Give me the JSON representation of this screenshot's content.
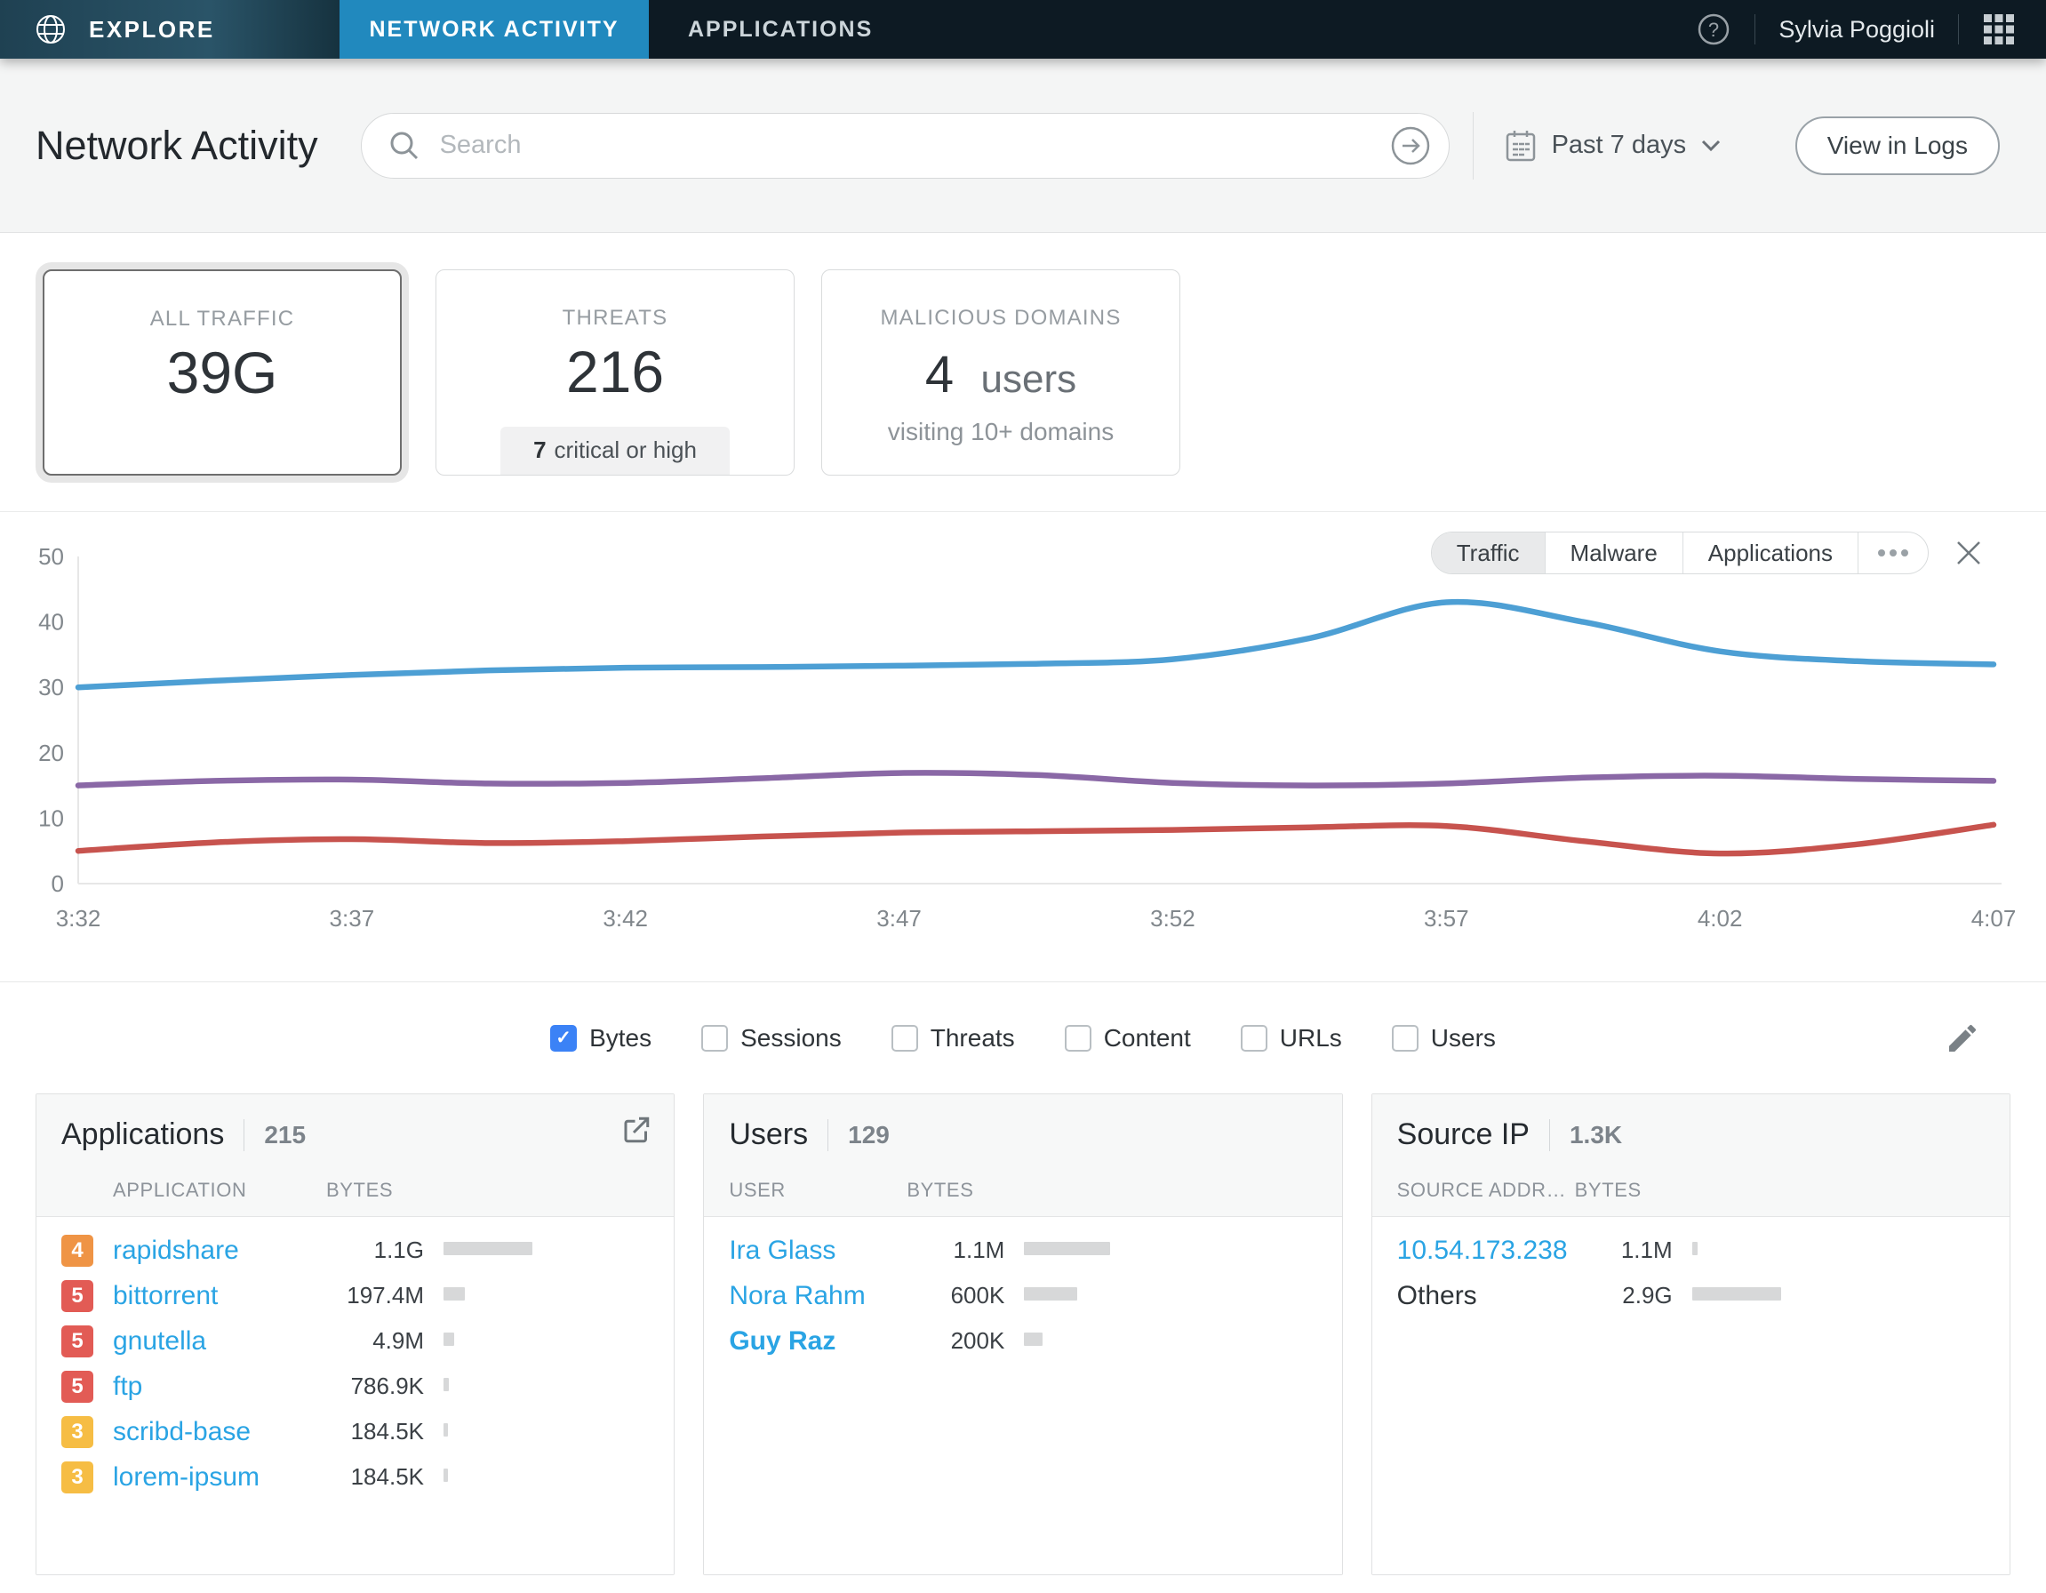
{
  "nav": {
    "brand": "EXPLORE",
    "tabs": [
      {
        "label": "NETWORK ACTIVITY",
        "active": true
      },
      {
        "label": "APPLICATIONS",
        "active": false
      }
    ],
    "user": "Sylvia Poggioli"
  },
  "header": {
    "title": "Network Activity",
    "search_placeholder": "Search",
    "time_range": "Past 7 days",
    "view_logs_label": "View in Logs"
  },
  "cards": [
    {
      "label": "ALL TRAFFIC",
      "value": "39G",
      "selected": true
    },
    {
      "label": "THREATS",
      "value": "216",
      "badge_strong": "7",
      "badge_text": "critical or high"
    },
    {
      "label": "MALICIOUS DOMAINS",
      "value_strong": "4",
      "value_suffix": "users",
      "subtext": "visiting 10+ domains"
    }
  ],
  "chart_controls": {
    "segments": [
      "Traffic",
      "Malware",
      "Applications"
    ],
    "active_segment": "Traffic"
  },
  "chart_data": {
    "type": "line",
    "title": "",
    "xlabel": "",
    "ylabel": "",
    "ylim": [
      0,
      50
    ],
    "y_ticks": [
      0,
      10,
      20,
      30,
      40,
      50
    ],
    "x_total_minutes": 35,
    "x_ticks": [
      {
        "label": "3:32",
        "min": 0
      },
      {
        "label": "3:37",
        "min": 5
      },
      {
        "label": "3:42",
        "min": 10
      },
      {
        "label": "3:47",
        "min": 15
      },
      {
        "label": "3:52",
        "min": 20
      },
      {
        "label": "3:57",
        "min": 25
      },
      {
        "label": "4:02",
        "min": 30
      },
      {
        "label": "4:07",
        "min": 35
      }
    ],
    "x_minutes": [
      0,
      2.5,
      5,
      7.5,
      10,
      12.5,
      15,
      17.5,
      20,
      22.5,
      25,
      27.5,
      30,
      32.5,
      35
    ],
    "grid": false,
    "legend_position": "none",
    "series": [
      {
        "name": "line-blue",
        "color": "#4D9FD4",
        "values": [
          30,
          31,
          31.9,
          32.6,
          33,
          33.1,
          33.3,
          33.6,
          34.3,
          37.5,
          43,
          40,
          35.5,
          34,
          33.5
        ]
      },
      {
        "name": "line-purple",
        "color": "#8A68A6",
        "values": [
          15,
          15.7,
          15.9,
          15.3,
          15.4,
          16.1,
          16.9,
          16.6,
          15.4,
          15,
          15.3,
          16.2,
          16.5,
          16,
          15.7
        ]
      },
      {
        "name": "line-red",
        "color": "#C7534E",
        "values": [
          5,
          6.3,
          6.8,
          6.2,
          6.5,
          7.2,
          7.8,
          8,
          8.2,
          8.6,
          8.8,
          6.5,
          4.6,
          6,
          9
        ]
      }
    ]
  },
  "toggles": [
    {
      "label": "Bytes",
      "checked": true
    },
    {
      "label": "Sessions",
      "checked": false
    },
    {
      "label": "Threats",
      "checked": false
    },
    {
      "label": "Content",
      "checked": false
    },
    {
      "label": "URLs",
      "checked": false
    },
    {
      "label": "Users",
      "checked": false
    }
  ],
  "panels": [
    {
      "title": "Applications",
      "count": "215",
      "columns": [
        "APPLICATION",
        "BYTES"
      ],
      "rows": [
        {
          "severity": "4",
          "severity_color": "#EF9445",
          "name": "rapidshare",
          "bytes": "1.1G",
          "bar": 100
        },
        {
          "severity": "5",
          "severity_color": "#E25B55",
          "name": "bittorrent",
          "bytes": "197.4M",
          "bar": 24
        },
        {
          "severity": "5",
          "severity_color": "#E25B55",
          "name": "gnutella",
          "bytes": "4.9M",
          "bar": 12
        },
        {
          "severity": "5",
          "severity_color": "#E25B55",
          "name": "ftp",
          "bytes": "786.9K",
          "bar": 6
        },
        {
          "severity": "3",
          "severity_color": "#F6BD44",
          "name": "scribd-base",
          "bytes": "184.5K",
          "bar": 5
        },
        {
          "severity": "3",
          "severity_color": "#F6BD44",
          "name": "lorem-ipsum",
          "bytes": "184.5K",
          "bar": 5
        }
      ]
    },
    {
      "title": "Users",
      "count": "129",
      "columns": [
        "USER",
        "BYTES"
      ],
      "rows": [
        {
          "name": "Ira Glass",
          "link": true,
          "bytes": "1.1M",
          "bar": 97
        },
        {
          "name": "Nora Rahm",
          "link": true,
          "bytes": "600K",
          "bar": 60
        },
        {
          "name": "Guy Raz",
          "link": true,
          "bold": true,
          "bytes": "200K",
          "bar": 21
        }
      ]
    },
    {
      "title": "Source IP",
      "count": "1.3K",
      "columns": [
        "SOURCE ADDRE...",
        "BYTES"
      ],
      "rows": [
        {
          "name": "10.54.173.238",
          "link": true,
          "bytes": "1.1M",
          "bar": 6
        },
        {
          "name": "Others",
          "link": false,
          "bytes": "2.9G",
          "bar": 100
        }
      ]
    }
  ],
  "colors": {
    "nav_active_tab": "#2189BE",
    "link_blue": "#2AA4E4",
    "checkbox_checked": "#3B82F6",
    "severity_4": "#EF9445",
    "severity_5": "#E25B55",
    "severity_3": "#F6BD44",
    "bar_gray": "#D7D8D9"
  }
}
